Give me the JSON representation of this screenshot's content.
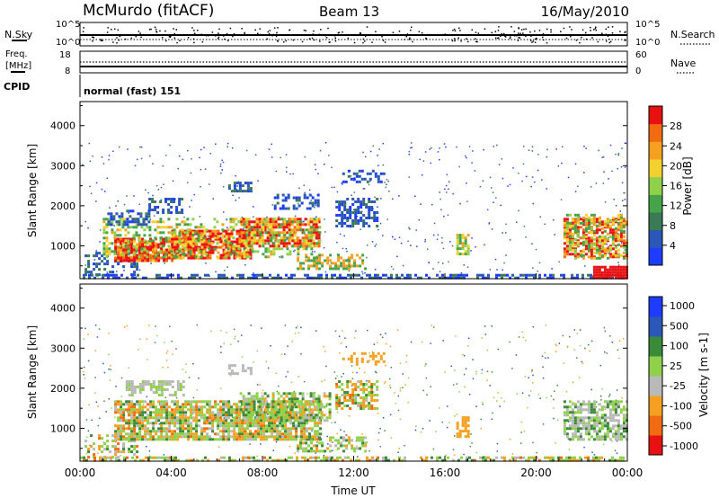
{
  "header": {
    "station": "McMurdo (fitACF)",
    "beam": "Beam 13",
    "date": "16/May/2010"
  },
  "strips": {
    "nsky_label": "N.Sky",
    "nsearch_label": "N.Search",
    "noise_ticks": [
      "10^5",
      "10^0"
    ],
    "freq_label_1": "Freq.",
    "freq_label_2": "[MHz]",
    "freq_ticks": [
      "18",
      "8"
    ],
    "nave_label": "Nave",
    "nave_ticks": [
      "60",
      "0"
    ],
    "cpid_label": "CPID",
    "cpid_value": "normal (fast) 151"
  },
  "colors": {
    "power": [
      "#1e3cff",
      "#2a57b8",
      "#3a7a55",
      "#45a34a",
      "#8fd14a",
      "#f2d22e",
      "#f5a020",
      "#f26b10",
      "#e81010"
    ],
    "velocity": [
      "#e81010",
      "#f26b10",
      "#f5a020",
      "#b9b9b9",
      "#8fd14a",
      "#3a8a3a",
      "#2a57b8",
      "#1e3cff"
    ]
  },
  "chart_data": [
    {
      "type": "heatmap",
      "name": "power",
      "ylabel": "Slant Range [km]",
      "xlabel": "",
      "ylim": [
        180,
        4600
      ],
      "xlim": [
        0,
        24
      ],
      "yticks": [
        1000,
        2000,
        3000,
        4000
      ],
      "ytick_labels": [
        "1000",
        "2000",
        "3000",
        "4000"
      ],
      "colorbar": {
        "label": "Power [dB]",
        "range": [
          0,
          32
        ],
        "ticks": [
          4,
          8,
          12,
          16,
          20,
          24,
          28
        ],
        "tick_labels": [
          "4",
          "8",
          "12",
          "16",
          "20",
          "24",
          "28"
        ]
      }
    },
    {
      "type": "heatmap",
      "name": "velocity",
      "ylabel": "Slant Range [km]",
      "xlabel": "Time UT",
      "ylim": [
        180,
        4600
      ],
      "xlim": [
        0,
        24
      ],
      "yticks": [
        1000,
        2000,
        3000,
        4000
      ],
      "ytick_labels": [
        "1000",
        "2000",
        "3000",
        "4000"
      ],
      "xtick_labels": [
        "00:00",
        "04:00",
        "08:00",
        "12:00",
        "16:00",
        "20:00",
        "00:00"
      ],
      "colorbar": {
        "label": "Velocity [m s-1]",
        "tick_labels": [
          "1000",
          "500",
          "100",
          "25",
          "-25",
          "-100",
          "-500",
          "-1000"
        ]
      }
    }
  ]
}
